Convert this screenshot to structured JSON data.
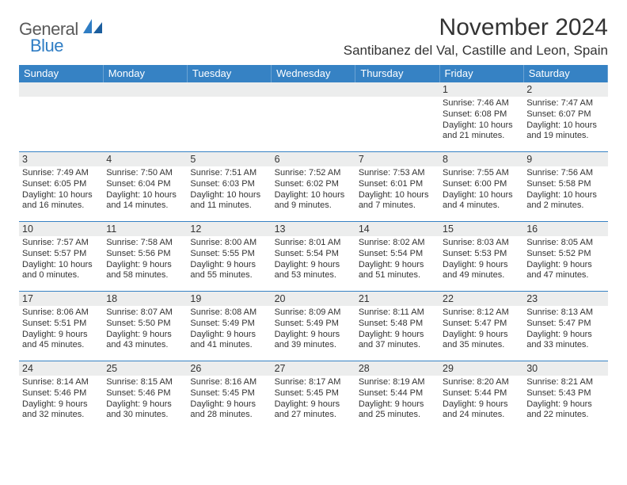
{
  "brand": {
    "part1": "General",
    "part2": "Blue",
    "color1": "#5a5a5a",
    "color2": "#2f7dc4"
  },
  "header": {
    "title": "November 2024",
    "location": "Santibanez del Val, Castille and Leon, Spain",
    "title_color": "#333333",
    "title_fontsize": 30,
    "location_fontsize": 17
  },
  "calendar": {
    "header_bg": "#3682c4",
    "header_fg": "#ffffff",
    "border_color": "#3682c4",
    "daynum_bg": "#eceded",
    "text_color": "#333333",
    "columns": [
      "Sunday",
      "Monday",
      "Tuesday",
      "Wednesday",
      "Thursday",
      "Friday",
      "Saturday"
    ],
    "weeks": [
      [
        {
          "day": "",
          "lines": []
        },
        {
          "day": "",
          "lines": []
        },
        {
          "day": "",
          "lines": []
        },
        {
          "day": "",
          "lines": []
        },
        {
          "day": "",
          "lines": []
        },
        {
          "day": "1",
          "lines": [
            "Sunrise: 7:46 AM",
            "Sunset: 6:08 PM",
            "Daylight: 10 hours",
            "and 21 minutes."
          ]
        },
        {
          "day": "2",
          "lines": [
            "Sunrise: 7:47 AM",
            "Sunset: 6:07 PM",
            "Daylight: 10 hours",
            "and 19 minutes."
          ]
        }
      ],
      [
        {
          "day": "3",
          "lines": [
            "Sunrise: 7:49 AM",
            "Sunset: 6:05 PM",
            "Daylight: 10 hours",
            "and 16 minutes."
          ]
        },
        {
          "day": "4",
          "lines": [
            "Sunrise: 7:50 AM",
            "Sunset: 6:04 PM",
            "Daylight: 10 hours",
            "and 14 minutes."
          ]
        },
        {
          "day": "5",
          "lines": [
            "Sunrise: 7:51 AM",
            "Sunset: 6:03 PM",
            "Daylight: 10 hours",
            "and 11 minutes."
          ]
        },
        {
          "day": "6",
          "lines": [
            "Sunrise: 7:52 AM",
            "Sunset: 6:02 PM",
            "Daylight: 10 hours",
            "and 9 minutes."
          ]
        },
        {
          "day": "7",
          "lines": [
            "Sunrise: 7:53 AM",
            "Sunset: 6:01 PM",
            "Daylight: 10 hours",
            "and 7 minutes."
          ]
        },
        {
          "day": "8",
          "lines": [
            "Sunrise: 7:55 AM",
            "Sunset: 6:00 PM",
            "Daylight: 10 hours",
            "and 4 minutes."
          ]
        },
        {
          "day": "9",
          "lines": [
            "Sunrise: 7:56 AM",
            "Sunset: 5:58 PM",
            "Daylight: 10 hours",
            "and 2 minutes."
          ]
        }
      ],
      [
        {
          "day": "10",
          "lines": [
            "Sunrise: 7:57 AM",
            "Sunset: 5:57 PM",
            "Daylight: 10 hours",
            "and 0 minutes."
          ]
        },
        {
          "day": "11",
          "lines": [
            "Sunrise: 7:58 AM",
            "Sunset: 5:56 PM",
            "Daylight: 9 hours",
            "and 58 minutes."
          ]
        },
        {
          "day": "12",
          "lines": [
            "Sunrise: 8:00 AM",
            "Sunset: 5:55 PM",
            "Daylight: 9 hours",
            "and 55 minutes."
          ]
        },
        {
          "day": "13",
          "lines": [
            "Sunrise: 8:01 AM",
            "Sunset: 5:54 PM",
            "Daylight: 9 hours",
            "and 53 minutes."
          ]
        },
        {
          "day": "14",
          "lines": [
            "Sunrise: 8:02 AM",
            "Sunset: 5:54 PM",
            "Daylight: 9 hours",
            "and 51 minutes."
          ]
        },
        {
          "day": "15",
          "lines": [
            "Sunrise: 8:03 AM",
            "Sunset: 5:53 PM",
            "Daylight: 9 hours",
            "and 49 minutes."
          ]
        },
        {
          "day": "16",
          "lines": [
            "Sunrise: 8:05 AM",
            "Sunset: 5:52 PM",
            "Daylight: 9 hours",
            "and 47 minutes."
          ]
        }
      ],
      [
        {
          "day": "17",
          "lines": [
            "Sunrise: 8:06 AM",
            "Sunset: 5:51 PM",
            "Daylight: 9 hours",
            "and 45 minutes."
          ]
        },
        {
          "day": "18",
          "lines": [
            "Sunrise: 8:07 AM",
            "Sunset: 5:50 PM",
            "Daylight: 9 hours",
            "and 43 minutes."
          ]
        },
        {
          "day": "19",
          "lines": [
            "Sunrise: 8:08 AM",
            "Sunset: 5:49 PM",
            "Daylight: 9 hours",
            "and 41 minutes."
          ]
        },
        {
          "day": "20",
          "lines": [
            "Sunrise: 8:09 AM",
            "Sunset: 5:49 PM",
            "Daylight: 9 hours",
            "and 39 minutes."
          ]
        },
        {
          "day": "21",
          "lines": [
            "Sunrise: 8:11 AM",
            "Sunset: 5:48 PM",
            "Daylight: 9 hours",
            "and 37 minutes."
          ]
        },
        {
          "day": "22",
          "lines": [
            "Sunrise: 8:12 AM",
            "Sunset: 5:47 PM",
            "Daylight: 9 hours",
            "and 35 minutes."
          ]
        },
        {
          "day": "23",
          "lines": [
            "Sunrise: 8:13 AM",
            "Sunset: 5:47 PM",
            "Daylight: 9 hours",
            "and 33 minutes."
          ]
        }
      ],
      [
        {
          "day": "24",
          "lines": [
            "Sunrise: 8:14 AM",
            "Sunset: 5:46 PM",
            "Daylight: 9 hours",
            "and 32 minutes."
          ]
        },
        {
          "day": "25",
          "lines": [
            "Sunrise: 8:15 AM",
            "Sunset: 5:46 PM",
            "Daylight: 9 hours",
            "and 30 minutes."
          ]
        },
        {
          "day": "26",
          "lines": [
            "Sunrise: 8:16 AM",
            "Sunset: 5:45 PM",
            "Daylight: 9 hours",
            "and 28 minutes."
          ]
        },
        {
          "day": "27",
          "lines": [
            "Sunrise: 8:17 AM",
            "Sunset: 5:45 PM",
            "Daylight: 9 hours",
            "and 27 minutes."
          ]
        },
        {
          "day": "28",
          "lines": [
            "Sunrise: 8:19 AM",
            "Sunset: 5:44 PM",
            "Daylight: 9 hours",
            "and 25 minutes."
          ]
        },
        {
          "day": "29",
          "lines": [
            "Sunrise: 8:20 AM",
            "Sunset: 5:44 PM",
            "Daylight: 9 hours",
            "and 24 minutes."
          ]
        },
        {
          "day": "30",
          "lines": [
            "Sunrise: 8:21 AM",
            "Sunset: 5:43 PM",
            "Daylight: 9 hours",
            "and 22 minutes."
          ]
        }
      ]
    ]
  }
}
